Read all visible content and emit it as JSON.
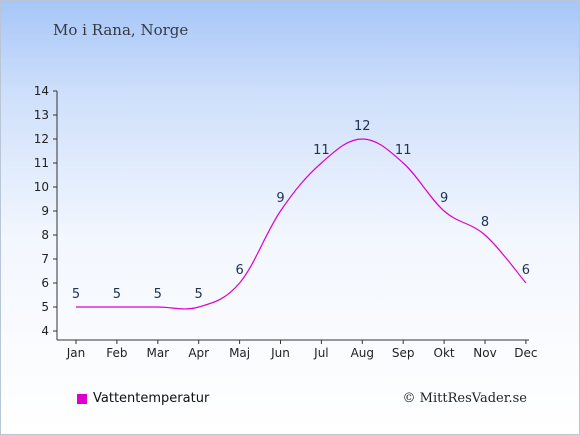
{
  "header": {
    "location": "Mo i Rana, Norge"
  },
  "legend": {
    "label": "Vattentemperatur",
    "color": "#dd00cc"
  },
  "credit": {
    "text": "© MittResVader.se"
  },
  "chart_data": {
    "type": "line",
    "categories": [
      "Jan",
      "Feb",
      "Mar",
      "Apr",
      "Maj",
      "Jun",
      "Jul",
      "Aug",
      "Sep",
      "Okt",
      "Nov",
      "Dec"
    ],
    "series": [
      {
        "name": "Vattentemperatur",
        "values": [
          5,
          5,
          5,
          5,
          6,
          9,
          11,
          12,
          11,
          9,
          8,
          6
        ],
        "color": "#dd00cc"
      }
    ],
    "ylim": [
      4,
      14
    ],
    "yticks": [
      4,
      5,
      6,
      7,
      8,
      9,
      10,
      11,
      12,
      13,
      14
    ],
    "grid": false,
    "legend_position": "bottom-left"
  }
}
